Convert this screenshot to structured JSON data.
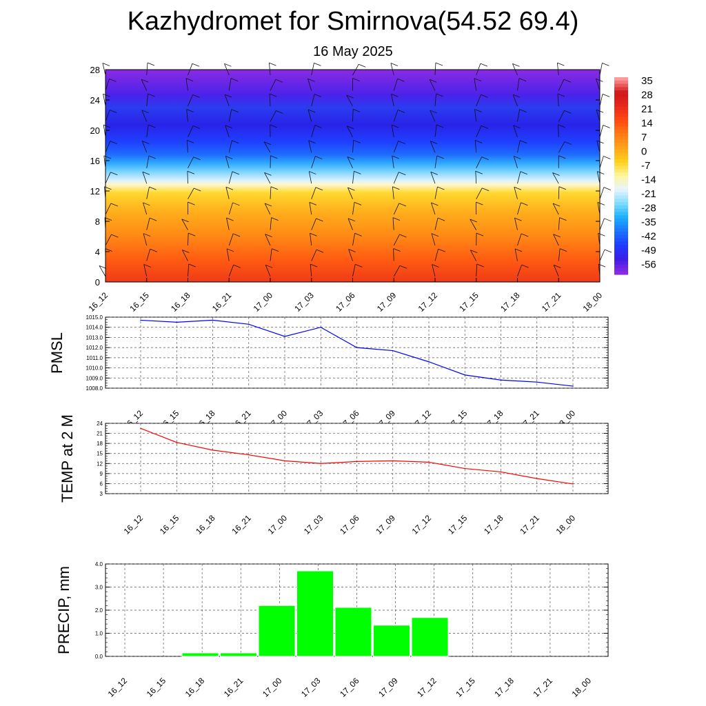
{
  "title": "Kazhydromet for Smirnova(54.52 69.4)",
  "subtitle": "16 May 2025",
  "time_labels": [
    "16_12",
    "16_15",
    "16_18",
    "16_21",
    "17_00",
    "17_03",
    "17_06",
    "17_09",
    "17_12",
    "17_15",
    "17_18",
    "17_21",
    "18_00"
  ],
  "chart_data": [
    {
      "type": "heatmap",
      "name": "temperature-cross-section",
      "x": [
        "16_12",
        "16_15",
        "16_18",
        "16_21",
        "17_00",
        "17_03",
        "17_06",
        "17_09",
        "17_12",
        "17_15",
        "17_18",
        "17_21",
        "18_00"
      ],
      "y_ticks": [
        "0",
        "4",
        "8",
        "12",
        "16",
        "20",
        "24",
        "28"
      ],
      "ylim": [
        0,
        28
      ],
      "colorbar_labels": [
        "35",
        "28",
        "21",
        "14",
        "7",
        "0",
        "-7",
        "-14",
        "-21",
        "-28",
        "-35",
        "-42",
        "-49",
        "-56"
      ],
      "colorbar_range": [
        -63,
        38
      ],
      "colors": [
        "#8a2be2",
        "#3a1ee6",
        "#1f3cff",
        "#1a74ff",
        "#1ab0ff",
        "#7fdcff",
        "#e8f4ff",
        "#fff7a0",
        "#ffd21a",
        "#ffa51a",
        "#ff7a14",
        "#ff4a10",
        "#e8281a",
        "#c0141a",
        "#ff9a9a"
      ],
      "wind_barbs": true
    },
    {
      "type": "line",
      "name": "pmsl",
      "ylabel": "PMSL",
      "x": [
        "16_12",
        "16_15",
        "16_18",
        "16_21",
        "17_00",
        "17_03",
        "17_06",
        "17_09",
        "17_12",
        "17_15",
        "17_18",
        "17_21",
        "18_00"
      ],
      "y_ticks": [
        "1008.0",
        "1009.0",
        "1010.0",
        "1011.0",
        "1012.0",
        "1013.0",
        "1014.0",
        "1015.0"
      ],
      "ylim": [
        1008.0,
        1015.0
      ],
      "values": [
        1014.7,
        1014.5,
        1014.7,
        1014.3,
        1013.1,
        1014.0,
        1012.0,
        1011.7,
        1010.6,
        1009.3,
        1008.8,
        1008.6,
        1008.2
      ],
      "color": "#0000ff",
      "grid": true
    },
    {
      "type": "line",
      "name": "temp-2m",
      "ylabel": "TEMP at 2 M",
      "x": [
        "16_12",
        "16_15",
        "16_18",
        "16_21",
        "17_00",
        "17_03",
        "17_06",
        "17_09",
        "17_12",
        "17_15",
        "17_18",
        "17_21",
        "18_00"
      ],
      "y_ticks": [
        "3",
        "6",
        "9",
        "12",
        "15",
        "18",
        "21",
        "24"
      ],
      "ylim": [
        3,
        24
      ],
      "values": [
        22.5,
        18.3,
        16.0,
        14.6,
        12.8,
        12.0,
        12.6,
        12.8,
        12.4,
        10.5,
        9.5,
        7.5,
        5.9
      ],
      "color": "#ff0000",
      "grid": true
    },
    {
      "type": "bar",
      "name": "precip",
      "ylabel": "PRECIP, mm",
      "categories": [
        "16_12",
        "16_15",
        "16_18",
        "16_21",
        "17_00",
        "17_03",
        "17_06",
        "17_09",
        "17_12",
        "17_15",
        "17_18",
        "17_21",
        "18_00"
      ],
      "y_ticks": [
        "0.0",
        "1.0",
        "2.0",
        "3.0",
        "4.0"
      ],
      "ylim": [
        0,
        4.0
      ],
      "values": [
        0,
        0,
        0.15,
        0.15,
        2.2,
        3.7,
        2.12,
        1.35,
        1.68,
        0,
        0,
        0,
        0
      ],
      "color": "#00ff00",
      "grid": true
    }
  ]
}
